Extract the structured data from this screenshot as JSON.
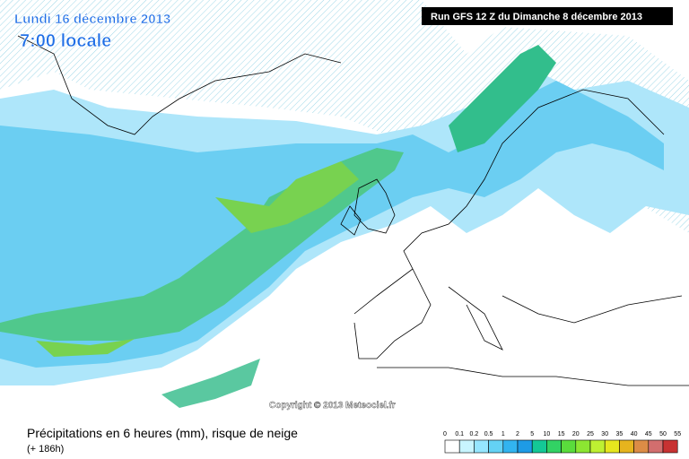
{
  "header": {
    "date": "Lundi 16 décembre 2013",
    "time": "7:00 locale",
    "run": "Run GFS 12 Z du Dimanche 8 décembre 2013"
  },
  "copyright": "Copyright © 2013 Meteociel.fr",
  "caption": {
    "title": "Précipitations en 6 heures (mm), risque de neige",
    "lead": "(+ 186h)"
  },
  "legend": {
    "labels": [
      "0",
      "0.1",
      "0.2",
      "0.5",
      "1",
      "2",
      "5",
      "10",
      "15",
      "20",
      "25",
      "30",
      "35",
      "40",
      "45",
      "50",
      "55"
    ],
    "colors": [
      "#ffffff",
      "#c8f5ff",
      "#96e6ff",
      "#64d2f5",
      "#32b4f0",
      "#1e9be6",
      "#14c896",
      "#32d264",
      "#5adc3c",
      "#8ce632",
      "#bef032",
      "#e6e61e",
      "#e6b41e",
      "#dc8c46",
      "#d26e6e",
      "#c83232"
    ]
  }
}
